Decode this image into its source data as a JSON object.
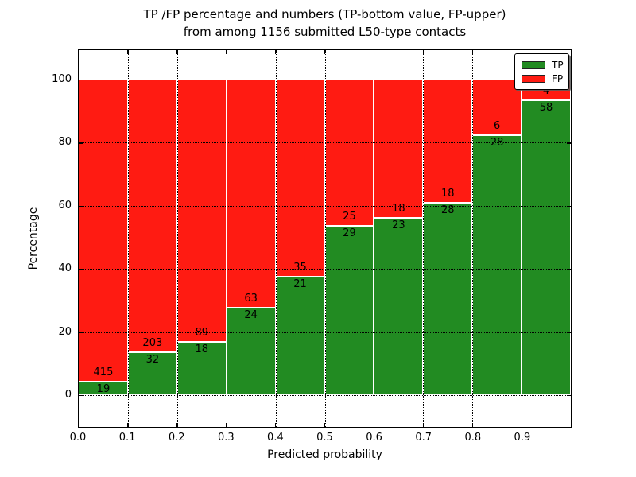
{
  "figure": {
    "title_line1": "TP /FP percentage and numbers (TP-bottom value, FP-upper)",
    "title_line2": "from among 1156 submitted L50-type contacts",
    "xlabel": "Predicted probability",
    "ylabel": "Percentage",
    "total_contacts": 1156
  },
  "legend": {
    "position": "upper right",
    "items": [
      {
        "label": "TP",
        "color": "#228B22"
      },
      {
        "label": "FP",
        "color": "#FF1B12"
      }
    ]
  },
  "chart_data": {
    "type": "bar",
    "stacked": true,
    "normalized": "each bar scaled to 100%",
    "title": "TP /FP percentage and numbers (TP-bottom value, FP-upper) from among 1156 submitted L50-type contacts",
    "xlabel": "Predicted probability",
    "ylabel": "Percentage",
    "categories": [
      "0.0-0.1",
      "0.1-0.2",
      "0.2-0.3",
      "0.3-0.4",
      "0.4-0.5",
      "0.5-0.6",
      "0.6-0.7",
      "0.7-0.8",
      "0.8-0.9",
      "0.9-1.0"
    ],
    "bin_edges": [
      0.0,
      0.1,
      0.2,
      0.3,
      0.4,
      0.5,
      0.6,
      0.7,
      0.8,
      0.9,
      1.0
    ],
    "series": [
      {
        "name": "TP",
        "color": "#228B22",
        "values": [
          19,
          32,
          18,
          24,
          21,
          29,
          23,
          28,
          28,
          58
        ]
      },
      {
        "name": "FP",
        "color": "#FF1B12",
        "values": [
          415,
          203,
          89,
          63,
          35,
          25,
          18,
          18,
          6,
          4
        ]
      }
    ],
    "xtick_labels": [
      "0.0",
      "0.1",
      "0.2",
      "0.3",
      "0.4",
      "0.5",
      "0.6",
      "0.7",
      "0.8",
      "0.9"
    ],
    "yticks": [
      0,
      20,
      40,
      60,
      80,
      100
    ],
    "ylim_approx": [
      -11,
      110
    ],
    "grid": "dotted, both axes, drawn above bars",
    "bar_edge_color": "#ffffff",
    "legend_position": "upper right"
  }
}
